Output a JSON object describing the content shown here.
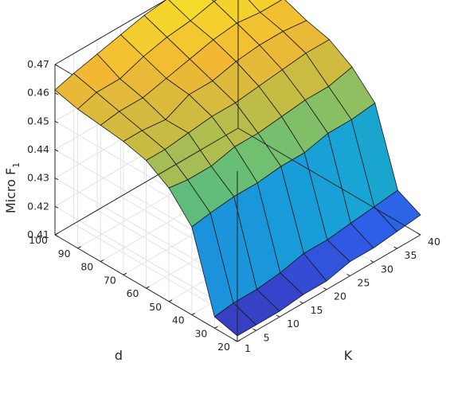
{
  "chart_data": {
    "type": "surface",
    "xlabel": "K",
    "ylabel": "d",
    "zlabel": "Micro F",
    "zlabel_sub": "1",
    "x": [
      1,
      5,
      10,
      15,
      20,
      25,
      30,
      35,
      40
    ],
    "y": [
      20,
      30,
      40,
      50,
      60,
      70,
      80,
      90,
      100
    ],
    "xlim": [
      1,
      40
    ],
    "ylim": [
      20,
      100
    ],
    "zlim": [
      0.41,
      0.47
    ],
    "xticks": [
      "1",
      "5",
      "10",
      "15",
      "20",
      "25",
      "30",
      "35",
      "40"
    ],
    "yticks": [
      "20",
      "30",
      "40",
      "50",
      "60",
      "70",
      "80",
      "90",
      "100"
    ],
    "zticks": [
      "0.41",
      "0.42",
      "0.43",
      "0.44",
      "0.45",
      "0.46",
      "0.47"
    ],
    "z": [
      [
        0.412,
        0.412,
        0.412,
        0.413,
        0.413,
        0.415,
        0.415,
        0.416,
        0.417
      ],
      [
        0.414,
        0.415,
        0.415,
        0.416,
        0.418,
        0.418,
        0.419,
        0.42,
        0.421
      ],
      [
        0.441,
        0.442,
        0.443,
        0.443,
        0.444,
        0.444,
        0.446,
        0.446,
        0.447
      ],
      [
        0.45,
        0.449,
        0.449,
        0.451,
        0.451,
        0.452,
        0.453,
        0.453,
        0.455
      ],
      [
        0.455,
        0.455,
        0.456,
        0.457,
        0.457,
        0.458,
        0.459,
        0.46,
        0.46
      ],
      [
        0.457,
        0.457,
        0.456,
        0.46,
        0.46,
        0.462,
        0.463,
        0.463,
        0.462
      ],
      [
        0.458,
        0.459,
        0.459,
        0.461,
        0.463,
        0.465,
        0.466,
        0.465,
        0.465
      ],
      [
        0.459,
        0.461,
        0.461,
        0.464,
        0.466,
        0.467,
        0.469,
        0.469,
        0.47
      ],
      [
        0.461,
        0.463,
        0.465,
        0.467,
        0.469,
        0.47,
        0.47,
        0.471,
        0.471
      ]
    ],
    "colormap": [
      "#3e26a8",
      "#2d5fe8",
      "#1f86e0",
      "#17a3d6",
      "#2ab59e",
      "#73bf6f",
      "#c2bc45",
      "#f2b834",
      "#f6e028"
    ],
    "grid": true
  }
}
